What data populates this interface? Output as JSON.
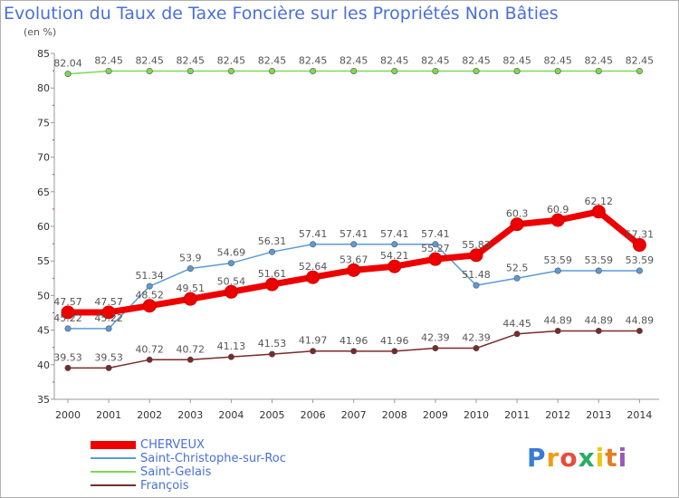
{
  "header": {
    "title": "Evolution du Taux de Taxe Foncière sur les Propriétés Non Bâties",
    "subtitle": "(en %)"
  },
  "logo": {
    "letters": [
      "P",
      "r",
      "o",
      "x",
      "i",
      "t",
      "i"
    ],
    "colors": [
      "#3a7bd5",
      "#f39c12",
      "#e74c3c",
      "#27ae60",
      "#f1c40f",
      "#e67e22",
      "#9b59b6"
    ]
  },
  "chart_data": {
    "type": "line",
    "title": "Evolution du Taux de Taxe Foncière sur les Propriétés Non Bâties",
    "ylabel": "(en %)",
    "xlabel": "",
    "x": [
      "2000",
      "2001",
      "2002",
      "2003",
      "2004",
      "2005",
      "2006",
      "2007",
      "2008",
      "2009",
      "2010",
      "2011",
      "2012",
      "2013",
      "2014"
    ],
    "ylim": [
      35,
      85
    ],
    "yticks": [
      "35",
      "40",
      "45",
      "50",
      "55",
      "60",
      "65",
      "70",
      "75",
      "80",
      "85"
    ],
    "grid": false,
    "legend_position": "bottom-left",
    "series": [
      {
        "name": "CHERVEUX",
        "color": "#ee0000",
        "values": [
          47.57,
          47.57,
          48.52,
          49.51,
          50.54,
          51.61,
          52.64,
          53.67,
          54.21,
          55.27,
          55.83,
          60.3,
          60.9,
          62.12,
          57.31
        ],
        "labels": [
          "47.57",
          "47.57",
          "48.52",
          "49.51",
          "50.54",
          "51.61",
          "52.64",
          "53.67",
          "54.21",
          "55.27",
          "55.83",
          "60.3",
          "60.9",
          "62.12",
          "57.31"
        ]
      },
      {
        "name": "Saint-Christophe-sur-Roc",
        "color": "#5b9bd5",
        "values": [
          45.22,
          45.22,
          51.34,
          53.9,
          54.69,
          56.31,
          57.41,
          57.41,
          57.41,
          57.41,
          51.48,
          52.5,
          53.59,
          53.59,
          53.59
        ],
        "labels": [
          "45.22",
          "45.22",
          "51.34",
          "53.9",
          "54.69",
          "56.31",
          "57.41",
          "57.41",
          "57.41",
          "57.41",
          "51.48",
          "52.5",
          "53.59",
          "53.59",
          "53.59"
        ]
      },
      {
        "name": "Saint-Gelais",
        "color": "#7ed957",
        "values": [
          82.04,
          82.45,
          82.45,
          82.45,
          82.45,
          82.45,
          82.45,
          82.45,
          82.45,
          82.45,
          82.45,
          82.45,
          82.45,
          82.45,
          82.45
        ],
        "labels": [
          "82.04",
          "82.45",
          "82.45",
          "82.45",
          "82.45",
          "82.45",
          "82.45",
          "82.45",
          "82.45",
          "82.45",
          "82.45",
          "82.45",
          "82.45",
          "82.45",
          "82.45"
        ]
      },
      {
        "name": "François",
        "color": "#7a2a2a",
        "values": [
          39.53,
          39.53,
          40.72,
          40.72,
          41.13,
          41.53,
          41.97,
          41.96,
          41.96,
          42.39,
          42.39,
          44.45,
          44.89,
          44.89,
          44.89
        ],
        "labels": [
          "39.53",
          "39.53",
          "40.72",
          "40.72",
          "41.13",
          "41.53",
          "41.97",
          "41.96",
          "41.96",
          "42.39",
          "42.39",
          "44.45",
          "44.89",
          "44.89",
          "44.89"
        ]
      }
    ]
  }
}
